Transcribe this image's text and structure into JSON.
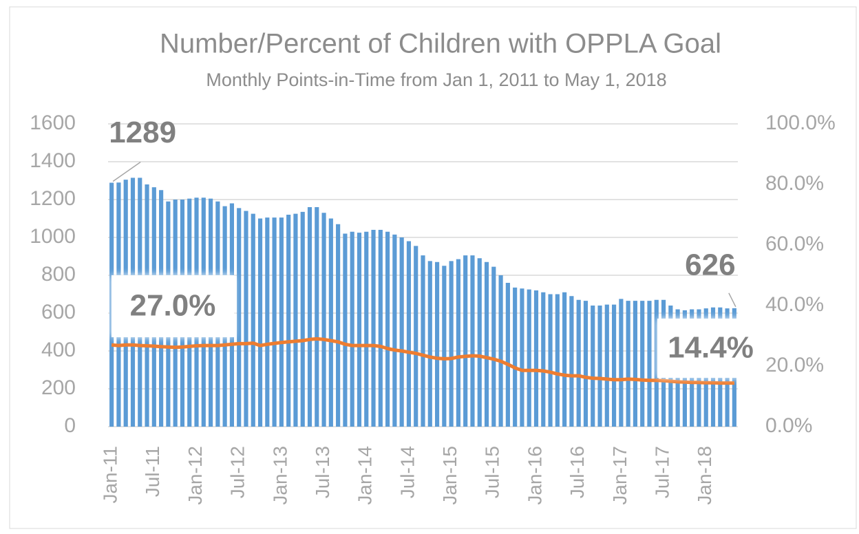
{
  "chart_data": {
    "type": "bar_line",
    "title": "Number/Percent of Children with OPPLA Goal",
    "subtitle": "Monthly Points-in-Time from Jan 1, 2011 to May 1, 2018",
    "categories": [
      "Jan-11",
      null,
      null,
      null,
      null,
      null,
      "Jul-11",
      null,
      null,
      null,
      null,
      null,
      "Jan-12",
      null,
      null,
      null,
      null,
      null,
      "Jul-12",
      null,
      null,
      null,
      null,
      null,
      "Jan-13",
      null,
      null,
      null,
      null,
      null,
      "Jul-13",
      null,
      null,
      null,
      null,
      null,
      "Jan-14",
      null,
      null,
      null,
      null,
      null,
      "Jul-14",
      null,
      null,
      null,
      null,
      null,
      "Jan-15",
      null,
      null,
      null,
      null,
      null,
      "Jul-15",
      null,
      null,
      null,
      null,
      null,
      "Jan-16",
      null,
      null,
      null,
      null,
      null,
      "Jul-16",
      null,
      null,
      null,
      null,
      null,
      "Jan-17",
      null,
      null,
      null,
      null,
      null,
      "Jul-17",
      null,
      null,
      null,
      null,
      null,
      "Jan-18",
      null,
      null,
      null,
      null
    ],
    "series": [
      {
        "type": "bar",
        "color": "#5b9bd5",
        "axis": "y",
        "values": [
          1289,
          1290,
          1305,
          1315,
          1315,
          1280,
          1265,
          1250,
          1190,
          1200,
          1200,
          1205,
          1210,
          1210,
          1205,
          1190,
          1165,
          1180,
          1155,
          1140,
          1125,
          1100,
          1105,
          1105,
          1105,
          1120,
          1125,
          1135,
          1160,
          1160,
          1130,
          1100,
          1070,
          1020,
          1030,
          1025,
          1030,
          1040,
          1040,
          1030,
          1015,
          1000,
          980,
          955,
          905,
          875,
          870,
          850,
          875,
          885,
          905,
          905,
          890,
          870,
          845,
          800,
          760,
          735,
          730,
          725,
          720,
          710,
          700,
          700,
          710,
          690,
          670,
          665,
          640,
          640,
          645,
          645,
          675,
          665,
          665,
          665,
          665,
          670,
          670,
          640,
          620,
          615,
          620,
          620,
          625,
          630,
          630,
          625,
          626
        ],
        "data_labels": [
          0,
          88
        ]
      },
      {
        "type": "line",
        "color": "#ed7d31",
        "axis": "y2",
        "values": [
          27.0,
          26.8,
          27.0,
          27.0,
          26.8,
          26.7,
          26.6,
          26.4,
          26.3,
          26.2,
          26.3,
          26.5,
          26.7,
          26.8,
          26.8,
          26.8,
          27.0,
          27.2,
          27.4,
          27.4,
          27.6,
          26.8,
          27.2,
          27.5,
          27.8,
          28.0,
          28.2,
          28.4,
          28.8,
          29.0,
          28.8,
          28.4,
          28.0,
          27.2,
          26.8,
          26.8,
          26.8,
          26.8,
          26.5,
          25.8,
          25.3,
          25.0,
          24.6,
          24.2,
          23.6,
          23.0,
          22.6,
          22.4,
          22.5,
          23.0,
          23.2,
          23.4,
          23.3,
          22.8,
          22.3,
          21.6,
          20.6,
          19.4,
          18.6,
          18.6,
          18.6,
          18.4,
          18.0,
          17.4,
          17.0,
          16.8,
          16.8,
          16.3,
          16.0,
          15.9,
          15.7,
          15.5,
          15.5,
          15.7,
          15.6,
          15.4,
          15.3,
          15.3,
          15.2,
          15.0,
          14.8,
          14.7,
          14.6,
          14.6,
          14.5,
          14.5,
          14.4,
          14.4,
          14.4
        ],
        "value_labels": [
          "27.0%",
          null,
          null,
          null,
          null,
          null,
          null,
          null,
          null,
          null,
          null,
          null,
          null,
          null,
          null,
          null,
          null,
          null,
          null,
          null,
          null,
          null,
          null,
          null,
          null,
          null,
          null,
          null,
          null,
          null,
          null,
          null,
          null,
          null,
          null,
          null,
          null,
          null,
          null,
          null,
          null,
          null,
          null,
          null,
          null,
          null,
          null,
          null,
          null,
          null,
          null,
          null,
          null,
          null,
          null,
          null,
          null,
          null,
          null,
          null,
          null,
          null,
          null,
          null,
          null,
          null,
          null,
          null,
          null,
          null,
          null,
          null,
          null,
          null,
          null,
          null,
          null,
          null,
          null,
          null,
          null,
          null,
          null,
          null,
          null,
          null,
          null,
          null,
          "14.4%"
        ]
      }
    ],
    "ylim": [
      0,
      1600
    ],
    "yticks": [
      0,
      200,
      400,
      600,
      800,
      1000,
      1200,
      1400,
      1600
    ],
    "y2lim": [
      0,
      100
    ],
    "y2ticks": [
      {
        "value": 0,
        "label": "0.0%"
      },
      {
        "value": 20,
        "label": "20.0%"
      },
      {
        "value": 40,
        "label": "40.0%"
      },
      {
        "value": 60,
        "label": "60.0%"
      },
      {
        "value": 80,
        "label": "80.0%"
      },
      {
        "value": 100,
        "label": "100.0%"
      }
    ],
    "grid": true
  }
}
